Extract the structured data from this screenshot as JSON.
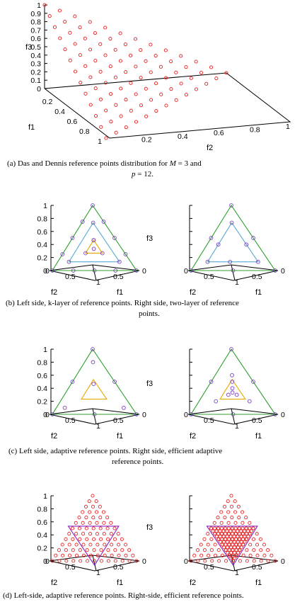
{
  "chart_data": [
    {
      "id": "a",
      "type": "scatter",
      "dims": [
        "f1",
        "f2",
        "f3"
      ],
      "generator": {
        "method": "das-dennis",
        "M": 3,
        "p": 12
      },
      "axes": {
        "f1": {
          "label": "f1",
          "ticks": [
            "0.2",
            "0.4",
            "0.6",
            "0.8",
            "1"
          ]
        },
        "f2": {
          "label": "f2",
          "ticks": [
            "0.2",
            "0.4",
            "0.6",
            "0.8",
            "1"
          ]
        },
        "f3": {
          "label": "f3",
          "ticks": [
            "1",
            "0.9",
            "0.8",
            "0.7",
            "0.6",
            "0.5",
            "0.4",
            "0.3",
            "0.2",
            "0.1",
            "0"
          ]
        }
      },
      "caption": {
        "prefix": "(a) Das and Dennis reference points distribution for ",
        "m": "M",
        "eq1": " = 3 and",
        "p": "p",
        "eq2": " = 12."
      },
      "series": [
        {
          "color": "#e41a1c",
          "marker": "circle"
        }
      ]
    },
    {
      "id": "b",
      "type": "scatter",
      "caption": {
        "line1": "(b) Left side, k-layer of reference points. Right side, two-layer of reference",
        "line2": "points."
      },
      "panels": [
        {
          "name": "left",
          "triangles": [
            {
              "color": "#2ca02c",
              "scale": 1.0,
              "inverted": false
            },
            {
              "color": "#5aa9d6",
              "scale": 0.6,
              "inverted": false
            },
            {
              "color": "#e6a800",
              "scale": 0.2,
              "inverted": false
            }
          ],
          "points": [
            [
              0,
              0,
              1
            ],
            [
              0.25,
              0,
              0.75
            ],
            [
              0,
              0.25,
              0.75
            ],
            [
              0.5,
              0,
              0.5
            ],
            [
              0,
              0.5,
              0.5
            ],
            [
              0.75,
              0,
              0.25
            ],
            [
              0,
              0.75,
              0.25
            ],
            [
              1,
              0,
              0
            ],
            [
              0.75,
              0.25,
              0
            ],
            [
              0.5,
              0.5,
              0
            ],
            [
              0.25,
              0.75,
              0
            ],
            [
              0,
              1,
              0
            ],
            [
              0.1333,
              0.1333,
              0.7333
            ],
            [
              0.1333,
              0.7333,
              0.1333
            ],
            [
              0.7333,
              0.1333,
              0.1333
            ],
            [
              0.2667,
              0.2667,
              0.4667
            ],
            [
              0.2667,
              0.4667,
              0.2667
            ],
            [
              0.4667,
              0.2667,
              0.2667
            ],
            [
              0.2667,
              0.2667,
              0.4667
            ],
            [
              0.3333,
              0.3333,
              0.3333
            ]
          ]
        },
        {
          "name": "right",
          "triangles": [
            {
              "color": "#2ca02c",
              "scale": 1.0,
              "inverted": false
            },
            {
              "color": "#5aa9d6",
              "scale": 0.6,
              "inverted": false
            }
          ],
          "points": [
            [
              0,
              0,
              1
            ],
            [
              0.5,
              0,
              0.5
            ],
            [
              0,
              0.5,
              0.5
            ],
            [
              1,
              0,
              0
            ],
            [
              0.5,
              0.5,
              0
            ],
            [
              0,
              1,
              0
            ],
            [
              0.1333,
              0.1333,
              0.7333
            ],
            [
              0.1333,
              0.7333,
              0.1333
            ],
            [
              0.7333,
              0.1333,
              0.1333
            ],
            [
              0.1333,
              0.4667,
              0.4
            ],
            [
              0.4667,
              0.1333,
              0.4
            ],
            [
              0.4,
              0.4667,
              0.1333
            ]
          ]
        }
      ],
      "common_axes": {
        "f3_ticks": [
          "1",
          "0.8",
          "0.6",
          "0.4",
          "0.2",
          "0"
        ],
        "f1_label": "f1",
        "f2_label": "f2",
        "f3_label": "f3",
        "bottom_ticks": [
          "0.5",
          "1",
          "0.5"
        ],
        "corner_ticks": [
          "0",
          "0"
        ]
      }
    },
    {
      "id": "c",
      "type": "scatter",
      "caption": {
        "line1": "(c) Left side, adaptive reference points. Right side, efficient adaptive",
        "line2": "reference points."
      },
      "panels": [
        {
          "name": "left",
          "triangles": [
            {
              "color": "#2ca02c",
              "scale": 1.0,
              "inverted": false
            },
            {
              "color": "#e6a800",
              "scale": 0.3,
              "inverted": false
            }
          ],
          "points": [
            [
              0,
              0,
              1
            ],
            [
              0.5,
              0,
              0.5
            ],
            [
              0,
              0.5,
              0.5
            ],
            [
              1,
              0,
              0
            ],
            [
              0.5,
              0.5,
              0
            ],
            [
              0,
              1,
              0
            ],
            [
              0.1,
              0.1,
              0.8
            ],
            [
              0.1,
              0.8,
              0.1
            ],
            [
              0.8,
              0.1,
              0.1
            ],
            [
              0.2667,
              0.2667,
              0.4667
            ]
          ]
        },
        {
          "name": "right",
          "triangles": [
            {
              "color": "#2ca02c",
              "scale": 1.0,
              "inverted": false
            },
            {
              "color": "#e6a800",
              "scale": 0.3,
              "inverted": false
            }
          ],
          "points": [
            [
              0,
              0,
              1
            ],
            [
              0.5,
              0,
              0.5
            ],
            [
              0,
              0.5,
              0.5
            ],
            [
              1,
              0,
              0
            ],
            [
              0.5,
              0.5,
              0
            ],
            [
              0,
              1,
              0
            ],
            [
              0.2,
              0.2,
              0.6
            ],
            [
              0.2,
              0.6,
              0.2
            ],
            [
              0.6,
              0.2,
              0.2
            ],
            [
              0.25,
              0.25,
              0.5
            ],
            [
              0.3,
              0.3,
              0.4
            ],
            [
              0.3,
              0.4,
              0.3
            ],
            [
              0.4,
              0.3,
              0.3
            ],
            [
              0.3333,
              0.3333,
              0.3333
            ]
          ]
        }
      ]
    },
    {
      "id": "d",
      "type": "scatter",
      "caption": {
        "line1": "(d) Left-side, adaptive reference points. Right-side, efficient reference points."
      },
      "panels": [
        {
          "name": "left",
          "density": 12,
          "inner_density": 0,
          "triangle": {
            "color": "#8b1fbf",
            "scale": 0.6,
            "inverted": true
          }
        },
        {
          "name": "right",
          "density": 12,
          "inner_density": 24,
          "triangle": {
            "color": "#8b1fbf",
            "scale": 0.6,
            "inverted": true
          }
        }
      ]
    }
  ]
}
